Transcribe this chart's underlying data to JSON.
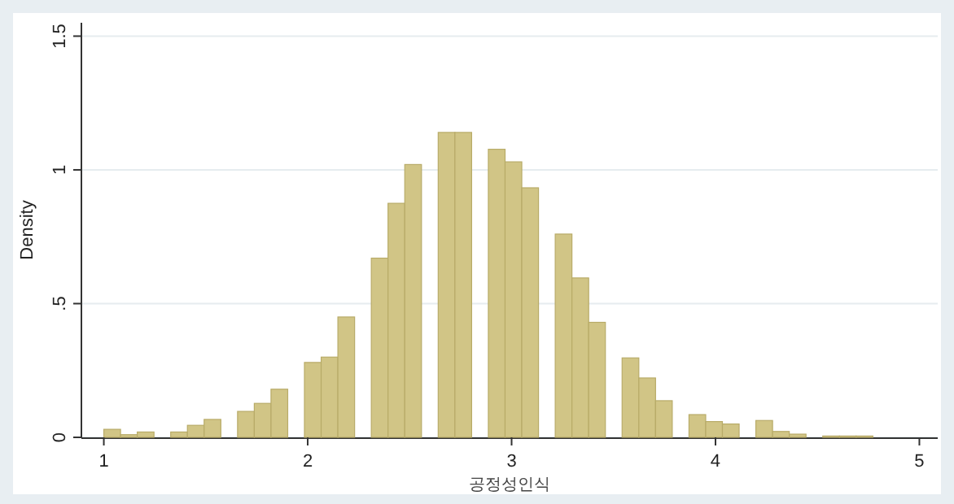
{
  "chart_data": {
    "type": "histogram",
    "xlabel": "공정성인식",
    "ylabel": "Density",
    "color": "#d1c586",
    "bins": [
      1.0,
      1.082,
      1.164,
      1.246,
      1.328,
      1.41,
      1.492,
      1.574,
      1.656,
      1.738,
      1.82,
      1.902,
      1.984,
      2.066,
      2.148,
      2.23,
      2.312,
      2.394,
      2.476,
      2.558,
      2.64,
      2.722,
      2.804,
      2.886,
      2.968,
      3.05,
      3.132,
      3.214,
      3.296,
      3.378,
      3.46,
      3.542,
      3.624,
      3.706,
      3.788,
      3.87,
      3.952,
      4.034,
      4.116,
      4.198,
      4.28,
      4.362,
      4.444,
      4.526,
      4.608,
      4.69,
      4.772
    ],
    "values": [
      0.03,
      0.01,
      0.02,
      0,
      0.02,
      0.045,
      0.067,
      0,
      0.097,
      0.127,
      0.18,
      0,
      0.28,
      0.3,
      0.45,
      0,
      0.67,
      0.875,
      1.02,
      0,
      1.14,
      1.14,
      0,
      1.077,
      1.03,
      0.933,
      0,
      0.76,
      0.596,
      0.43,
      0,
      0.297,
      0.222,
      0.137,
      0,
      0.085,
      0.059,
      0.05,
      0,
      0.063,
      0.022,
      0.012,
      0,
      0.005,
      0.005,
      0.005
    ],
    "xlim": [
      0.89,
      5.09
    ],
    "ylim": [
      0,
      1.55
    ],
    "xticks": [
      1,
      2,
      3,
      4,
      5
    ],
    "yticks": [
      0,
      {
        "value": 0.5,
        "label": ".5"
      },
      1,
      1.5
    ],
    "grid": "y"
  }
}
